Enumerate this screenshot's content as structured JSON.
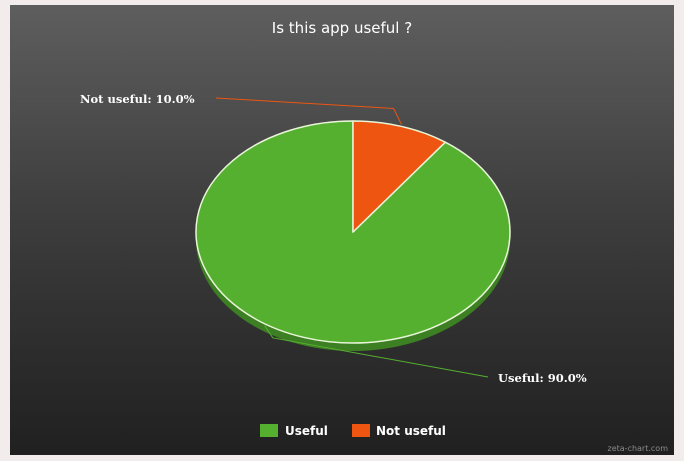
{
  "chart_data": {
    "type": "pie",
    "title": "Is this app useful ?",
    "categories": [
      "Useful",
      "Not useful"
    ],
    "values": [
      90.0,
      10.0
    ],
    "data_labels": [
      "Useful: 90.0%",
      "Not useful: 10.0%"
    ],
    "colors": [
      "#55b030",
      "#ee5511"
    ],
    "legend": {
      "position": "bottom",
      "items": [
        "Useful",
        "Not useful"
      ]
    }
  },
  "credit": "zeta-chart.com"
}
